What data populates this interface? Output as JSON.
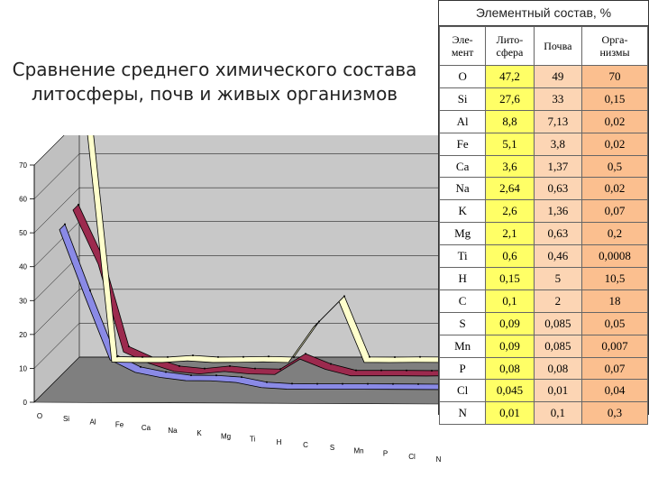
{
  "slide": {
    "title_line1": "Сравнение среднего химического состава",
    "title_line2": "литосферы, почв и живых организмов"
  },
  "table": {
    "caption": "Элементный состав, %",
    "headers": [
      "Эле-\nмент",
      "Лито-\nсфера",
      "Почва",
      "Орга-\nнизмы"
    ],
    "rows": [
      [
        "O",
        "47,2",
        "49",
        "70"
      ],
      [
        "Si",
        "27,6",
        "33",
        "0,15"
      ],
      [
        "Al",
        "8,8",
        "7,13",
        "0,02"
      ],
      [
        "Fe",
        "5,1",
        "3,8",
        "0,02"
      ],
      [
        "Ca",
        "3,6",
        "1,37",
        "0,5"
      ],
      [
        "Na",
        "2,64",
        "0,63",
        "0,02"
      ],
      [
        "K",
        "2,6",
        "1,36",
        "0,07"
      ],
      [
        "Mg",
        "2,1",
        "0,63",
        "0,2"
      ],
      [
        "Ti",
        "0,6",
        "0,46",
        "0,0008"
      ],
      [
        "H",
        "0,15",
        "5",
        "10,5"
      ],
      [
        "C",
        "0,1",
        "2",
        "18"
      ],
      [
        "S",
        "0,09",
        "0,085",
        "0,05"
      ],
      [
        "Mn",
        "0,09",
        "0,085",
        "0,007"
      ],
      [
        "P",
        "0,08",
        "0,08",
        "0,07"
      ],
      [
        "Cl",
        "0,045",
        "0,01",
        "0,04"
      ],
      [
        "N",
        "0,01",
        "0,1",
        "0,3"
      ]
    ]
  },
  "chart_data": {
    "type": "line",
    "categories": [
      "O",
      "Si",
      "Al",
      "Fe",
      "Ca",
      "Na",
      "K",
      "Mg",
      "Ti",
      "H",
      "C",
      "S",
      "Mn",
      "P",
      "Cl",
      "N"
    ],
    "yticks": [
      "0",
      "10",
      "20",
      "30",
      "40",
      "50",
      "60",
      "70"
    ],
    "ylim": [
      0,
      70
    ],
    "series": [
      {
        "name": "Организмы",
        "color": "#ffffcc",
        "values": [
          70,
          0.15,
          0.02,
          0.02,
          0.5,
          0.02,
          0.07,
          0.2,
          0.0008,
          10.5,
          18,
          0.05,
          0.007,
          0.07,
          0.04,
          0.3
        ]
      },
      {
        "name": "Почва",
        "color": "#9c2a4e",
        "values": [
          49,
          33,
          7.13,
          3.8,
          1.37,
          0.63,
          1.36,
          0.63,
          0.46,
          5,
          2,
          0.085,
          0.085,
          0.08,
          0.01,
          0.1
        ]
      },
      {
        "name": "Литосфера",
        "color": "#8a8ae6",
        "values": [
          47.2,
          27.6,
          8.8,
          5.1,
          3.6,
          2.64,
          2.6,
          2.1,
          0.6,
          0.15,
          0.1,
          0.09,
          0.09,
          0.08,
          0.045,
          0.01
        ]
      }
    ],
    "grid": true,
    "legend": "bottom-right"
  }
}
